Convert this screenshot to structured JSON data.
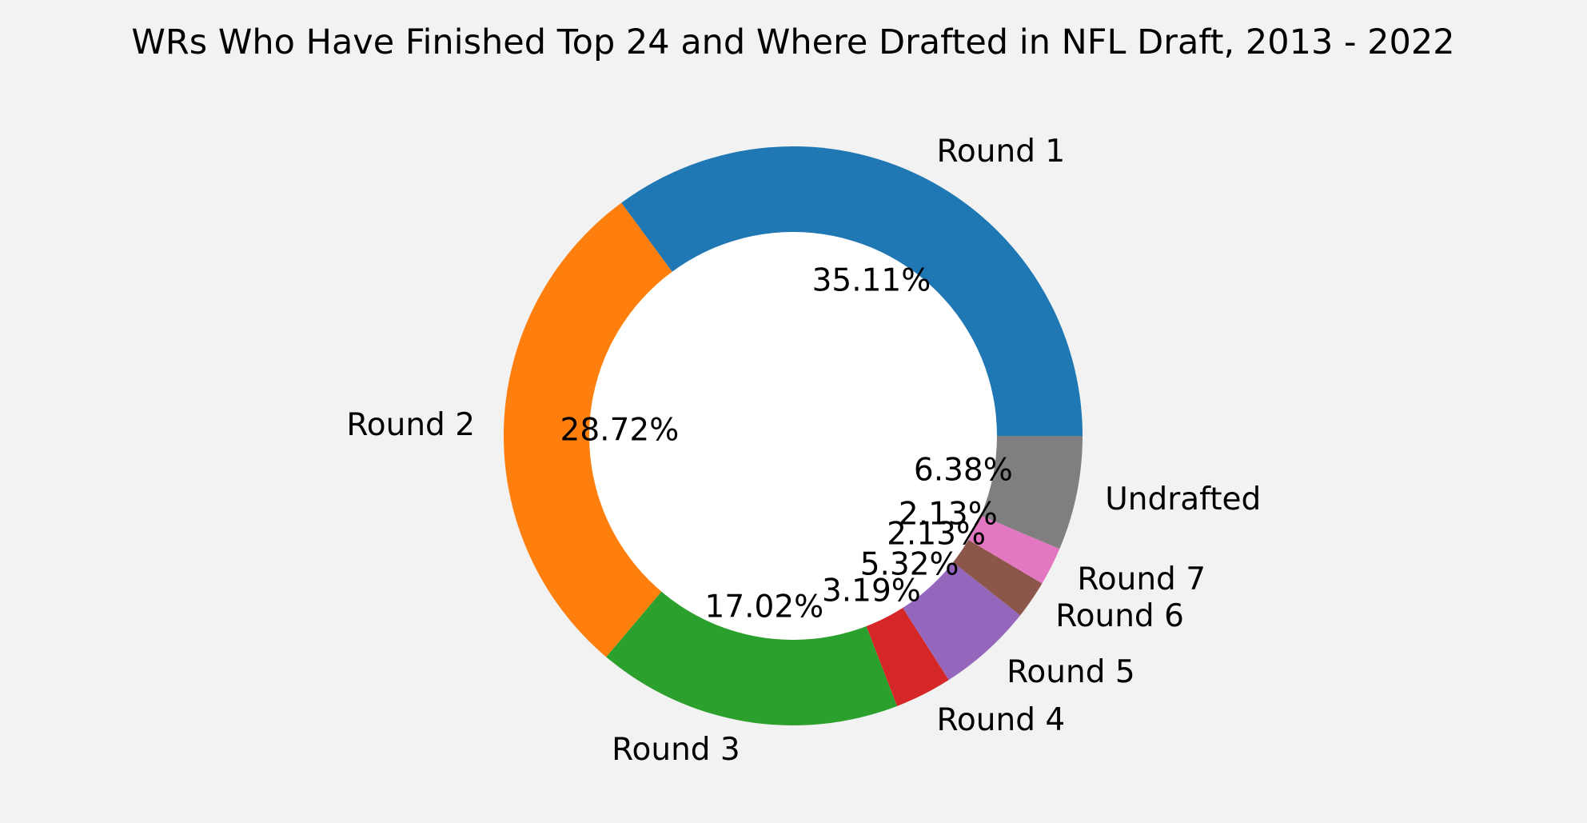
{
  "chart_data": {
    "type": "pie",
    "donut": true,
    "title": "WRs Who Have Finished Top 24 and Where Drafted in NFL Draft, 2013 - 2022",
    "categories": [
      "Round 1",
      "Round 2",
      "Round 3",
      "Round 4",
      "Round 5",
      "Round 6",
      "Round 7",
      "Undrafted"
    ],
    "values": [
      35.11,
      28.72,
      17.02,
      3.19,
      5.32,
      2.13,
      2.13,
      6.38
    ],
    "value_labels": [
      "35.11%",
      "28.72%",
      "17.02%",
      "3.19%",
      "5.32%",
      "2.13%",
      "2.13%",
      "6.38%"
    ],
    "colors": [
      "#1f77b4",
      "#ff7f0e",
      "#2ca02c",
      "#d62728",
      "#9467bd",
      "#8c564b",
      "#e377c2",
      "#7f7f7f"
    ],
    "start_angle_deg": 0,
    "direction": "counterclockwise",
    "background": "#f2f2f2",
    "hole_color": "#ffffff"
  }
}
